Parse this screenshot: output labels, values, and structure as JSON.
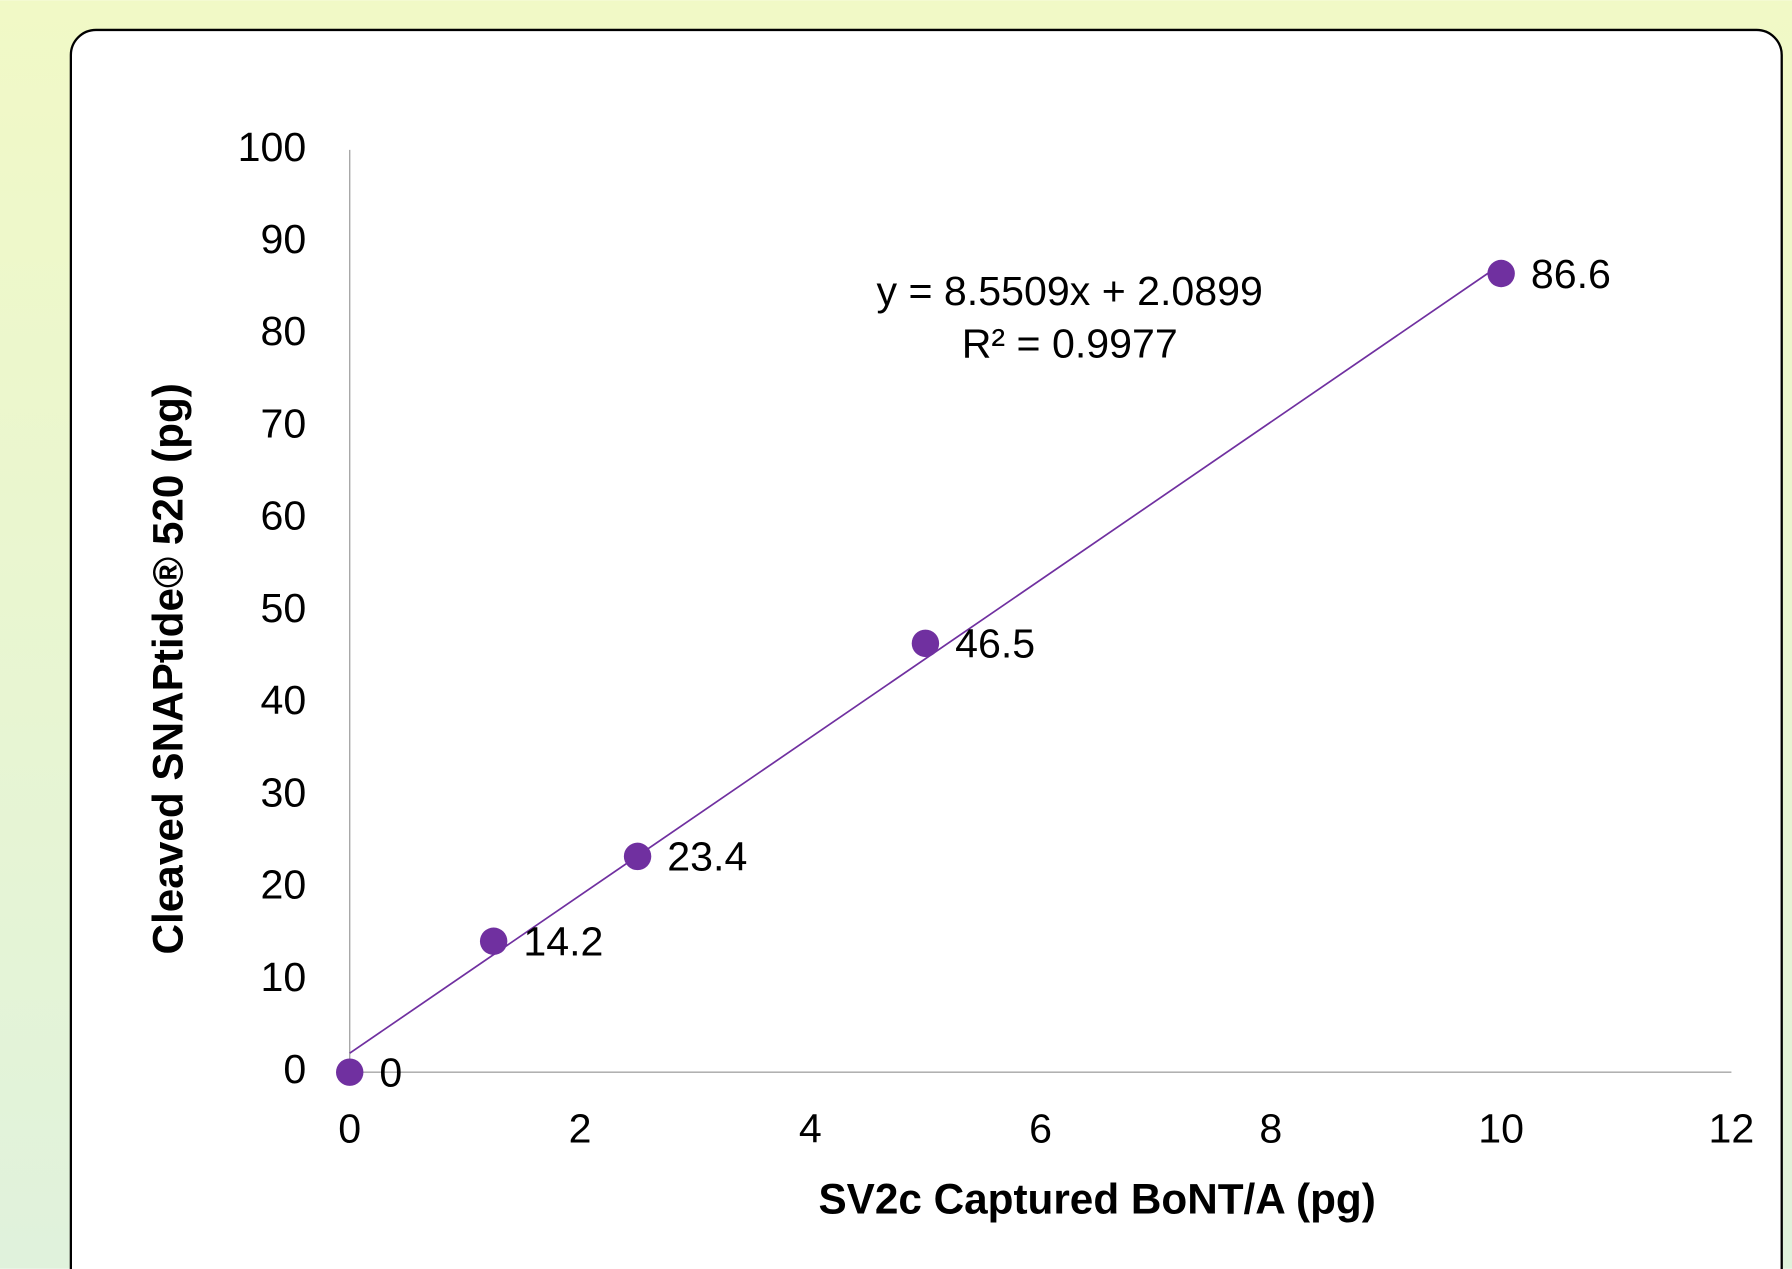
{
  "chart_data": {
    "type": "scatter",
    "x_label": "SV2c Captured BoNT/A (pg)",
    "y_label": "Cleaved SNAPtide® 520 (pg)",
    "x": [
      0,
      1.25,
      2.5,
      5,
      10
    ],
    "values": [
      0,
      14.2,
      23.4,
      46.5,
      86.6
    ],
    "color": "#7030a0",
    "trendline": "linear",
    "annotations": [
      "y = 8.5509x + 2.0899",
      "R² = 0.9977"
    ],
    "xlim": [
      0,
      12
    ],
    "xticks": [
      0,
      2,
      4,
      6,
      8,
      10,
      12
    ],
    "ylim": [
      0,
      100
    ],
    "yticks": [
      0,
      10,
      20,
      30,
      40,
      50,
      60,
      70,
      80,
      90,
      100
    ],
    "grid": false
  }
}
